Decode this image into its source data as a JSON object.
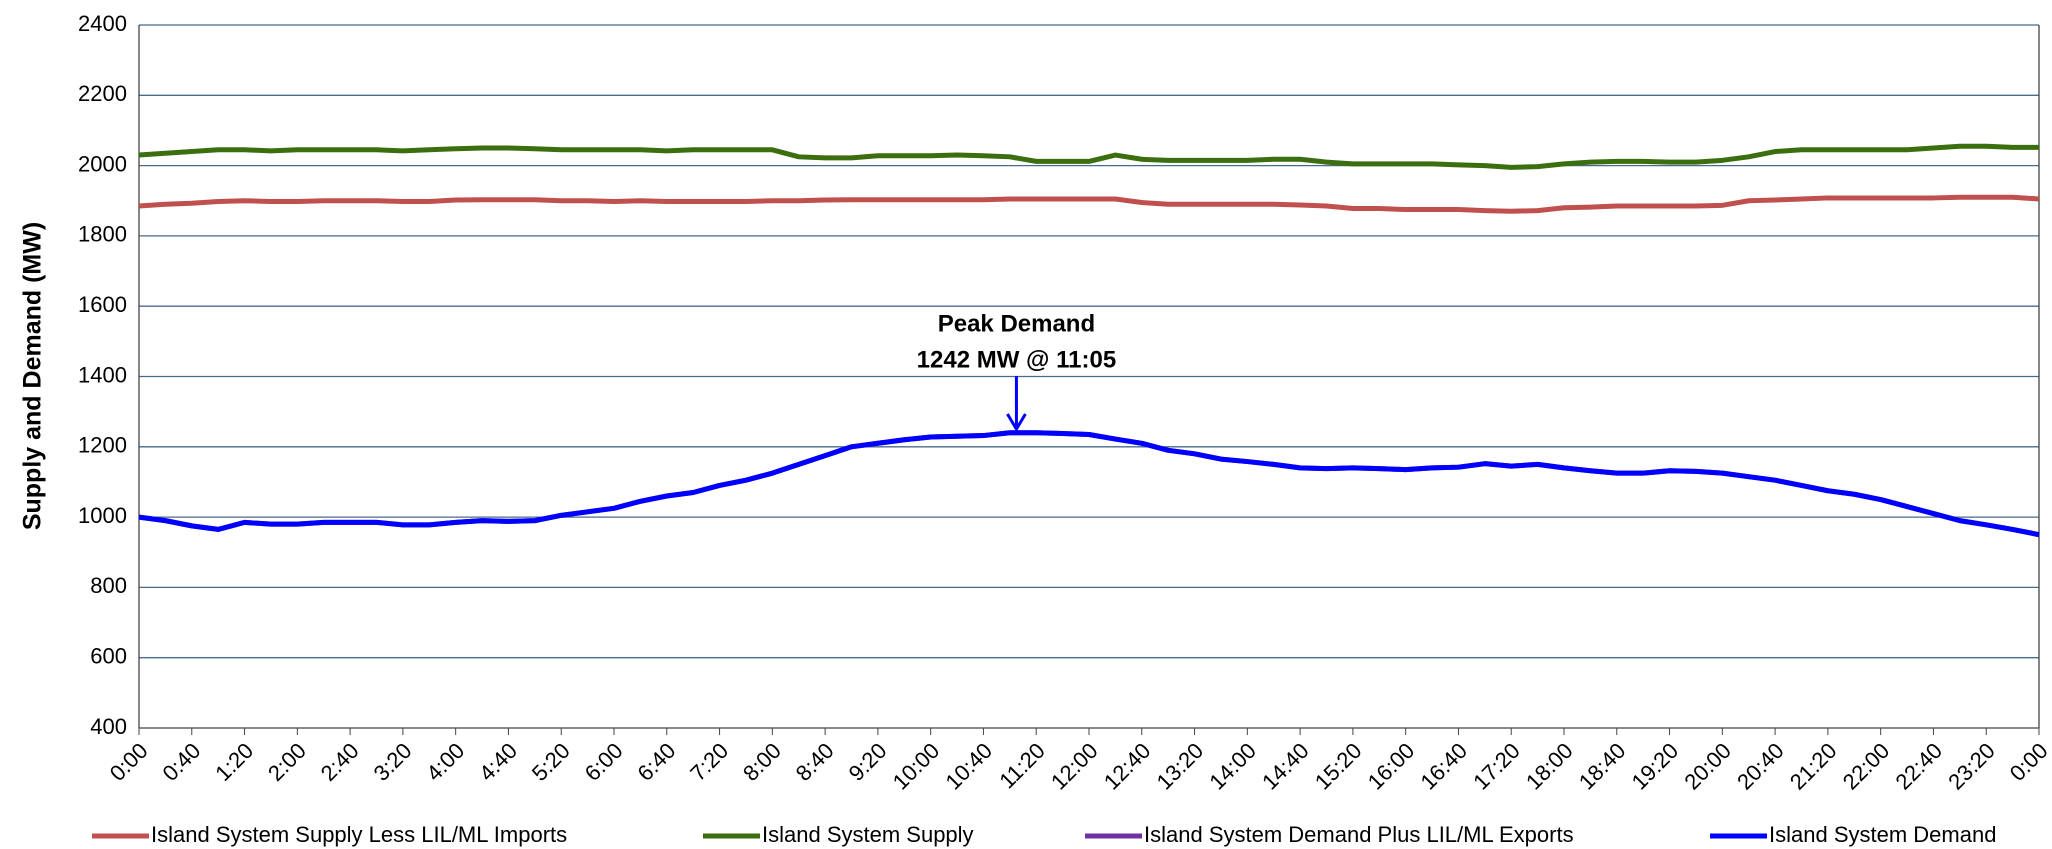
{
  "chart_data": {
    "type": "line",
    "y_label": "Supply and Demand (MW)",
    "ylim": [
      400,
      2400
    ],
    "yticks": [
      400,
      600,
      800,
      1000,
      1200,
      1400,
      1600,
      1800,
      2000,
      2200,
      2400
    ],
    "grid": true,
    "xlim": [
      0,
      1440
    ],
    "xticks": [
      {
        "value": 0,
        "label": "0:00"
      },
      {
        "value": 40,
        "label": "0:40"
      },
      {
        "value": 80,
        "label": "1:20"
      },
      {
        "value": 120,
        "label": "2:00"
      },
      {
        "value": 160,
        "label": "2:40"
      },
      {
        "value": 200,
        "label": "3:20"
      },
      {
        "value": 240,
        "label": "4:00"
      },
      {
        "value": 280,
        "label": "4:40"
      },
      {
        "value": 320,
        "label": "5:20"
      },
      {
        "value": 360,
        "label": "6:00"
      },
      {
        "value": 400,
        "label": "6:40"
      },
      {
        "value": 440,
        "label": "7:20"
      },
      {
        "value": 480,
        "label": "8:00"
      },
      {
        "value": 520,
        "label": "8:40"
      },
      {
        "value": 560,
        "label": "9:20"
      },
      {
        "value": 600,
        "label": "10:00"
      },
      {
        "value": 640,
        "label": "10:40"
      },
      {
        "value": 680,
        "label": "11:20"
      },
      {
        "value": 720,
        "label": "12:00"
      },
      {
        "value": 760,
        "label": "12:40"
      },
      {
        "value": 800,
        "label": "13:20"
      },
      {
        "value": 840,
        "label": "14:00"
      },
      {
        "value": 880,
        "label": "14:40"
      },
      {
        "value": 920,
        "label": "15:20"
      },
      {
        "value": 960,
        "label": "16:00"
      },
      {
        "value": 1000,
        "label": "16:40"
      },
      {
        "value": 1040,
        "label": "17:20"
      },
      {
        "value": 1080,
        "label": "18:00"
      },
      {
        "value": 1120,
        "label": "18:40"
      },
      {
        "value": 1160,
        "label": "19:20"
      },
      {
        "value": 1200,
        "label": "20:00"
      },
      {
        "value": 1240,
        "label": "20:40"
      },
      {
        "value": 1280,
        "label": "21:20"
      },
      {
        "value": 1320,
        "label": "22:00"
      },
      {
        "value": 1360,
        "label": "22:40"
      },
      {
        "value": 1400,
        "label": "23:20"
      },
      {
        "value": 1440,
        "label": "0:00"
      }
    ],
    "x": [
      0,
      20,
      40,
      60,
      80,
      100,
      120,
      140,
      160,
      180,
      200,
      220,
      240,
      260,
      280,
      300,
      320,
      340,
      360,
      380,
      400,
      420,
      440,
      460,
      480,
      500,
      520,
      540,
      560,
      580,
      600,
      620,
      640,
      660,
      680,
      700,
      720,
      740,
      760,
      780,
      800,
      820,
      840,
      860,
      880,
      900,
      920,
      940,
      960,
      980,
      1000,
      1020,
      1040,
      1060,
      1080,
      1100,
      1120,
      1140,
      1160,
      1180,
      1200,
      1220,
      1240,
      1260,
      1280,
      1300,
      1320,
      1340,
      1360,
      1380,
      1400,
      1420,
      1440
    ],
    "series": [
      {
        "name": "Island System Supply Less LIL/ML Imports",
        "color": "#c0504d",
        "values": [
          1885,
          1890,
          1893,
          1898,
          1900,
          1898,
          1898,
          1900,
          1900,
          1900,
          1898,
          1898,
          1902,
          1903,
          1903,
          1903,
          1900,
          1900,
          1898,
          1900,
          1898,
          1898,
          1898,
          1898,
          1900,
          1900,
          1902,
          1903,
          1903,
          1903,
          1903,
          1903,
          1903,
          1905,
          1905,
          1905,
          1905,
          1905,
          1895,
          1890,
          1890,
          1890,
          1890,
          1890,
          1888,
          1885,
          1878,
          1878,
          1875,
          1875,
          1875,
          1872,
          1870,
          1872,
          1880,
          1882,
          1885,
          1885,
          1885,
          1885,
          1887,
          1900,
          1902,
          1905,
          1908,
          1908,
          1908,
          1908,
          1908,
          1910,
          1910,
          1910,
          1905
        ]
      },
      {
        "name": "Island System Supply",
        "color": "#3a6e0f",
        "values": [
          2030,
          2035,
          2040,
          2045,
          2045,
          2042,
          2045,
          2045,
          2045,
          2045,
          2042,
          2045,
          2048,
          2050,
          2050,
          2048,
          2045,
          2045,
          2045,
          2045,
          2042,
          2045,
          2045,
          2045,
          2045,
          2025,
          2022,
          2022,
          2028,
          2028,
          2028,
          2030,
          2028,
          2025,
          2012,
          2012,
          2012,
          2030,
          2018,
          2015,
          2015,
          2015,
          2015,
          2018,
          2018,
          2010,
          2005,
          2005,
          2005,
          2005,
          2002,
          2000,
          1995,
          1997,
          2005,
          2010,
          2012,
          2012,
          2010,
          2010,
          2015,
          2025,
          2040,
          2045,
          2045,
          2045,
          2045,
          2045,
          2050,
          2055,
          2055,
          2052,
          2052
        ]
      },
      {
        "name": "Island System Demand Plus LIL/ML Exports",
        "color": "#7030a0",
        "values": [
          1000,
          990,
          975,
          965,
          985,
          980,
          980,
          985,
          985,
          985,
          978,
          978,
          985,
          990,
          988,
          990,
          1005,
          1015,
          1025,
          1045,
          1060,
          1070,
          1090,
          1105,
          1125,
          1150,
          1175,
          1200,
          1210,
          1220,
          1228,
          1230,
          1232,
          1240,
          1240,
          1238,
          1235,
          1222,
          1210,
          1190,
          1180,
          1165,
          1158,
          1150,
          1140,
          1138,
          1140,
          1138,
          1135,
          1140,
          1142,
          1152,
          1145,
          1150,
          1140,
          1132,
          1125,
          1125,
          1132,
          1130,
          1125,
          1115,
          1105,
          1090,
          1075,
          1065,
          1050,
          1030,
          1010,
          990,
          978,
          965,
          950
        ]
      },
      {
        "name": "Island System Demand",
        "color": "#0000ff",
        "values": [
          1000,
          990,
          975,
          965,
          985,
          980,
          980,
          985,
          985,
          985,
          978,
          978,
          985,
          990,
          988,
          990,
          1005,
          1015,
          1025,
          1045,
          1060,
          1070,
          1090,
          1105,
          1125,
          1150,
          1175,
          1200,
          1210,
          1220,
          1228,
          1230,
          1232,
          1240,
          1240,
          1238,
          1235,
          1222,
          1210,
          1190,
          1180,
          1165,
          1158,
          1150,
          1140,
          1138,
          1140,
          1138,
          1135,
          1140,
          1142,
          1152,
          1145,
          1150,
          1140,
          1132,
          1125,
          1125,
          1132,
          1130,
          1125,
          1115,
          1105,
          1090,
          1075,
          1065,
          1050,
          1030,
          1010,
          990,
          978,
          965,
          950
        ]
      }
    ],
    "annotation": {
      "lines": [
        "Peak Demand",
        "1242 MW @ 11:05"
      ],
      "x": 665,
      "y": 1242
    }
  }
}
